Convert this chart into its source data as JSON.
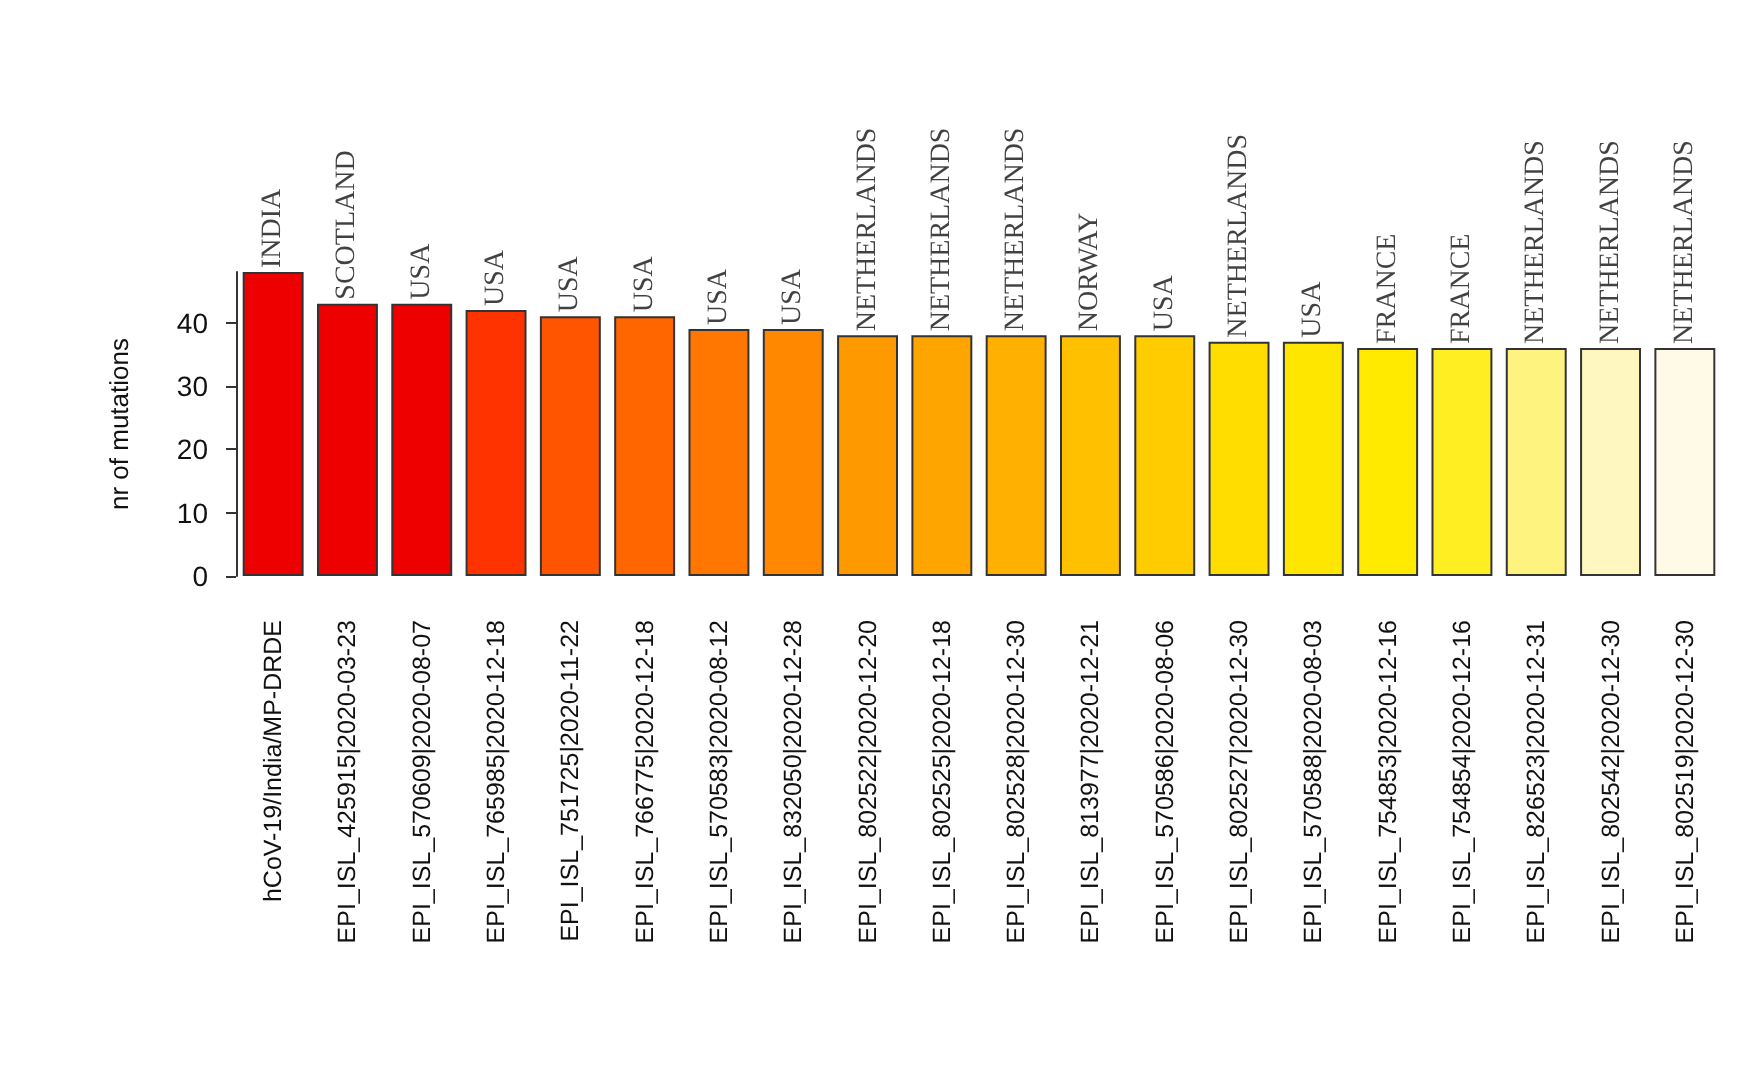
{
  "chart_data": {
    "type": "bar",
    "ylabel": "nr of mutations",
    "categories": [
      "hCoV-19/India/MP-DRDE",
      "EPI_ISL_425915|2020-03-23",
      "EPI_ISL_570609|2020-08-07",
      "EPI_ISL_765985|2020-12-18",
      "EPI_ISL_751725|2020-11-22",
      "EPI_ISL_766775|2020-12-18",
      "EPI_ISL_570583|2020-08-12",
      "EPI_ISL_832050|2020-12-28",
      "EPI_ISL_802522|2020-12-20",
      "EPI_ISL_802525|2020-12-18",
      "EPI_ISL_802528|2020-12-30",
      "EPI_ISL_813977|2020-12-21",
      "EPI_ISL_570586|2020-08-06",
      "EPI_ISL_802527|2020-12-30",
      "EPI_ISL_570588|2020-08-03",
      "EPI_ISL_754853|2020-12-16",
      "EPI_ISL_754854|2020-12-16",
      "EPI_ISL_826523|2020-12-31",
      "EPI_ISL_802542|2020-12-30",
      "EPI_ISL_802519|2020-12-30"
    ],
    "values": [
      48,
      43,
      43,
      42,
      41,
      41,
      39,
      39,
      38,
      38,
      38,
      38,
      38,
      37,
      37,
      36,
      36,
      36,
      36,
      36
    ],
    "colors": [
      "#ee0000",
      "#ee0000",
      "#ee0000",
      "#ff3300",
      "#ff5500",
      "#ff6600",
      "#ff7700",
      "#ff8800",
      "#ff9900",
      "#ffa500",
      "#ffb000",
      "#ffc000",
      "#ffcc00",
      "#ffdd00",
      "#ffe600",
      "#ffea00",
      "#ffee22",
      "#fff380",
      "#fff6c0",
      "#fffae8"
    ],
    "ylim": [
      0,
      48
    ],
    "yticks": [
      0,
      10,
      20,
      30,
      40
    ],
    "annotations": [
      {
        "text": "INDIA",
        "x": "hCoV-19/India/MP-DRDE",
        "y": 48
      },
      {
        "text": "SCOTLAND",
        "x": "EPI_ISL_425915|2020-03-23",
        "y": 43
      },
      {
        "text": "USA",
        "x": "EPI_ISL_570609|2020-08-07",
        "y": 43
      },
      {
        "text": "USA",
        "x": "EPI_ISL_765985|2020-12-18",
        "y": 42
      },
      {
        "text": "USA",
        "x": "EPI_ISL_751725|2020-11-22",
        "y": 41
      },
      {
        "text": "USA",
        "x": "EPI_ISL_766775|2020-12-18",
        "y": 41
      },
      {
        "text": "USA",
        "x": "EPI_ISL_570583|2020-08-12",
        "y": 39
      },
      {
        "text": "USA",
        "x": "EPI_ISL_832050|2020-12-28",
        "y": 39
      },
      {
        "text": "NETHERLANDS",
        "x": "EPI_ISL_802522|2020-12-20",
        "y": 38
      },
      {
        "text": "NETHERLANDS",
        "x": "EPI_ISL_802525|2020-12-18",
        "y": 38
      },
      {
        "text": "NETHERLANDS",
        "x": "EPI_ISL_802528|2020-12-30",
        "y": 38
      },
      {
        "text": "NORWAY",
        "x": "EPI_ISL_813977|2020-12-21",
        "y": 38
      },
      {
        "text": "USA",
        "x": "EPI_ISL_570586|2020-08-06",
        "y": 38
      },
      {
        "text": "NETHERLANDS",
        "x": "EPI_ISL_802527|2020-12-30",
        "y": 37
      },
      {
        "text": "USA",
        "x": "EPI_ISL_570588|2020-08-03",
        "y": 37
      },
      {
        "text": "FRANCE",
        "x": "EPI_ISL_754853|2020-12-16",
        "y": 36
      },
      {
        "text": "FRANCE",
        "x": "EPI_ISL_754854|2020-12-16",
        "y": 36
      },
      {
        "text": "NETHERLANDS",
        "x": "EPI_ISL_826523|2020-12-31",
        "y": 36
      },
      {
        "text": "NETHERLANDS",
        "x": "EPI_ISL_802542|2020-12-30",
        "y": 36
      },
      {
        "text": "NETHERLANDS",
        "x": "EPI_ISL_802519|2020-12-30",
        "y": 36
      }
    ]
  }
}
